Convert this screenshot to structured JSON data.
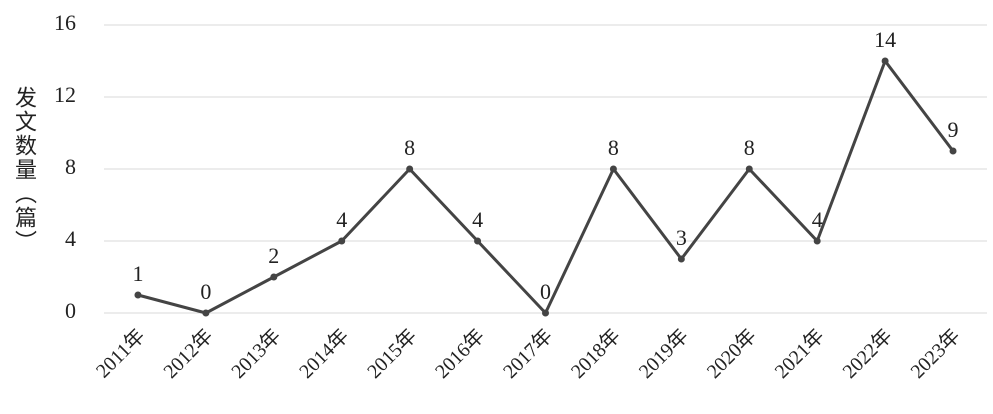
{
  "chart_data": {
    "type": "line",
    "y_label": "发文数量（篇）",
    "categories": [
      "2011年",
      "2012年",
      "2013年",
      "2014年",
      "2015年",
      "2016年",
      "2017年",
      "2018年",
      "2019年",
      "2020年",
      "2021年",
      "2022年",
      "2023年"
    ],
    "values": [
      1,
      0,
      2,
      4,
      8,
      4,
      0,
      8,
      3,
      8,
      4,
      14,
      9
    ],
    "color": "#444444",
    "ylim": [
      0,
      16
    ],
    "yticks": [
      0,
      4,
      8,
      12,
      16
    ],
    "grid": true
  }
}
